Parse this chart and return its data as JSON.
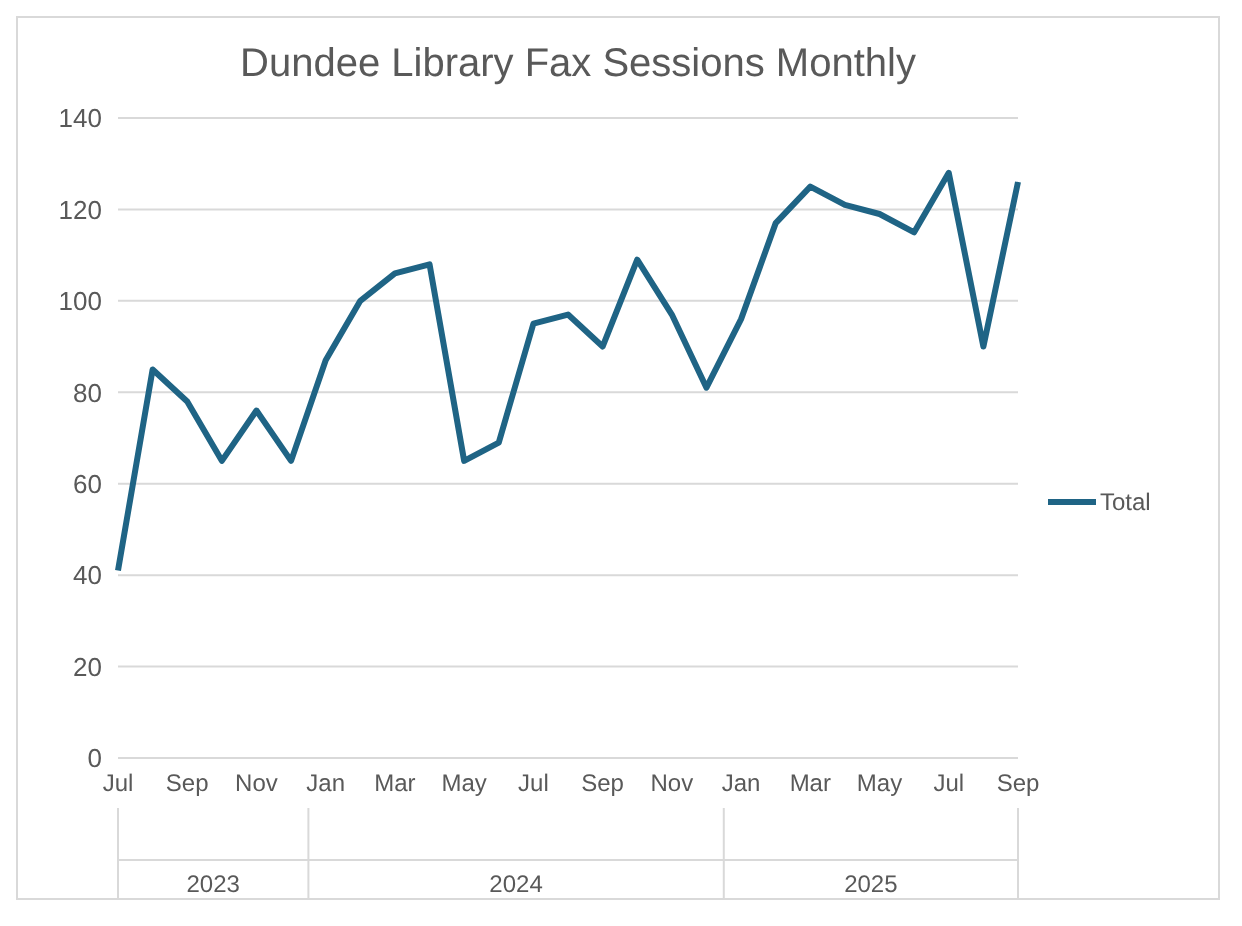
{
  "chart_data": {
    "type": "line",
    "title": "Dundee Library Fax Sessions Monthly",
    "categories": [
      "Jul",
      null,
      "Sep",
      null,
      "Nov",
      null,
      "Jan",
      null,
      "Mar",
      null,
      "May",
      null,
      "Jul",
      null,
      "Sep",
      null,
      "Nov",
      null,
      "Jan",
      null,
      "Mar",
      null,
      "May",
      null,
      "Jul",
      null,
      "Sep"
    ],
    "series": [
      {
        "name": "Total",
        "color": "#1f6485",
        "values": [
          41,
          85,
          78,
          65,
          76,
          65,
          87,
          100,
          106,
          108,
          65,
          69,
          95,
          97,
          90,
          109,
          97,
          81,
          96,
          117,
          125,
          121,
          119,
          115,
          128,
          90,
          126
        ]
      }
    ],
    "annotations": [
      "2023",
      "2024",
      "2025"
    ],
    "ylim": [
      0,
      140
    ],
    "yticks": [
      0,
      20,
      40,
      60,
      80,
      100,
      120,
      140
    ],
    "grid": "y",
    "legend": "right",
    "marker": "none",
    "line_style": "solid"
  }
}
